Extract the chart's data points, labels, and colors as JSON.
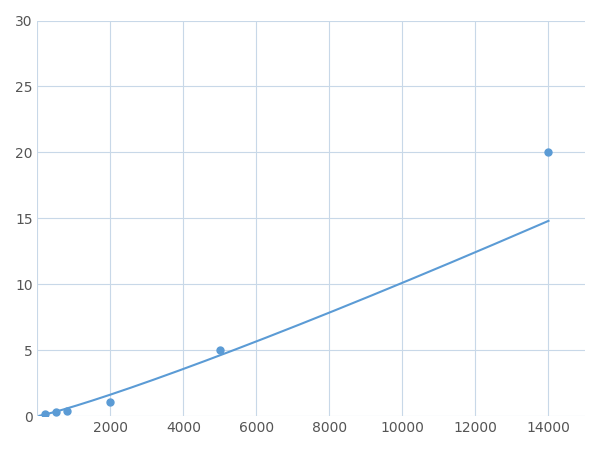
{
  "x_points": [
    200,
    500,
    800,
    2000,
    5000,
    14000
  ],
  "y_points": [
    0.2,
    0.3,
    0.4,
    1.1,
    5.0,
    20.0
  ],
  "line_color": "#5b9bd5",
  "marker_color": "#5b9bd5",
  "marker_size": 5,
  "xlim": [
    0,
    15000
  ],
  "ylim": [
    0,
    30
  ],
  "xticks": [
    0,
    2000,
    4000,
    6000,
    8000,
    10000,
    12000,
    14000
  ],
  "yticks": [
    0,
    5,
    10,
    15,
    20,
    25,
    30
  ],
  "xtick_labels": [
    "",
    "2000",
    "4000",
    "6000",
    "8000",
    "10000",
    "12000",
    "14000"
  ],
  "grid_color": "#c8d8e8",
  "background_color": "#ffffff",
  "linewidth": 1.5
}
